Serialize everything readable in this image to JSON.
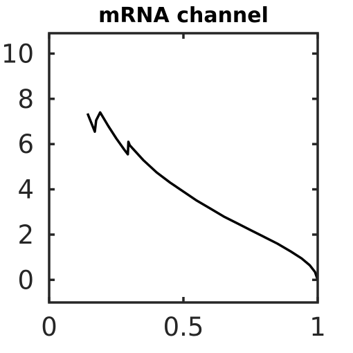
{
  "chart_data": {
    "type": "line",
    "title": "mRNA channel",
    "xlabel": "",
    "ylabel": "",
    "xlim": [
      0,
      1
    ],
    "ylim": [
      -1,
      10.9
    ],
    "xticks": [
      0,
      0.5,
      1
    ],
    "xtick_labels": [
      "0",
      "0.5",
      "1"
    ],
    "yticks": [
      0,
      2,
      4,
      6,
      8,
      10
    ],
    "ytick_labels": [
      "0",
      "2",
      "4",
      "6",
      "8",
      "10"
    ],
    "grid": false,
    "colors": {
      "line": "#000000",
      "axes": "#262626"
    },
    "series": [
      {
        "x": [
          0.143,
          0.17,
          0.175,
          0.19,
          0.22,
          0.25,
          0.28,
          0.293,
          0.295,
          0.3,
          0.35,
          0.4,
          0.45,
          0.5,
          0.55,
          0.6,
          0.65,
          0.7,
          0.75,
          0.8,
          0.85,
          0.9,
          0.94,
          0.97,
          0.99,
          1.0
        ],
        "y": [
          7.35,
          6.55,
          7.05,
          7.4,
          6.8,
          6.25,
          5.75,
          5.55,
          6.1,
          5.95,
          5.3,
          4.75,
          4.3,
          3.9,
          3.5,
          3.15,
          2.8,
          2.5,
          2.2,
          1.9,
          1.6,
          1.25,
          0.95,
          0.65,
          0.35,
          0.0
        ]
      }
    ]
  }
}
